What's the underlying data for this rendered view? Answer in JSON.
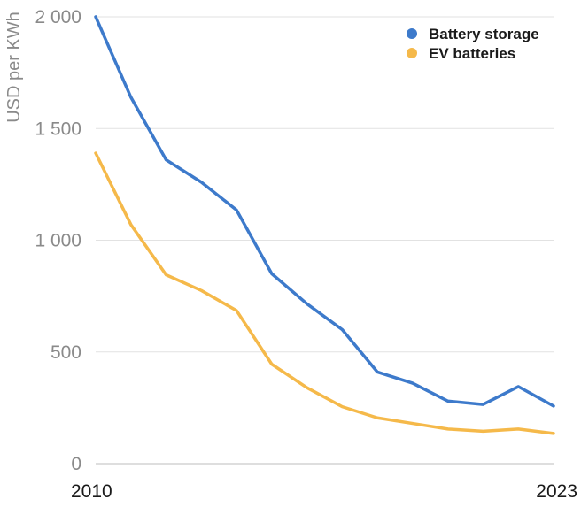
{
  "chart_data": {
    "type": "line",
    "title": "",
    "xlabel": "",
    "ylabel": "USD per KWh",
    "x": [
      2010,
      2011,
      2012,
      2013,
      2014,
      2015,
      2016,
      2017,
      2018,
      2019,
      2020,
      2021,
      2022,
      2023
    ],
    "xlim": [
      2010,
      2023
    ],
    "ylim": [
      0,
      2000
    ],
    "x_tick_labels": [
      {
        "value": 2010,
        "label": "2010"
      },
      {
        "value": 2023,
        "label": "2023"
      }
    ],
    "y_ticks": [
      0,
      500,
      1000,
      1500,
      2000
    ],
    "y_tick_labels": [
      "0",
      "500",
      "1 000",
      "1 500",
      "2 000"
    ],
    "grid": true,
    "legend_position": "top-right",
    "series": [
      {
        "name": "Battery storage",
        "color": "#3d7acb",
        "values": [
          2000,
          1640,
          1360,
          1260,
          1135,
          850,
          715,
          600,
          410,
          360,
          280,
          265,
          345,
          258
        ]
      },
      {
        "name": "EV batteries",
        "color": "#f5b94a",
        "values": [
          1390,
          1070,
          845,
          775,
          685,
          445,
          340,
          255,
          205,
          180,
          155,
          145,
          155,
          135
        ]
      }
    ]
  }
}
